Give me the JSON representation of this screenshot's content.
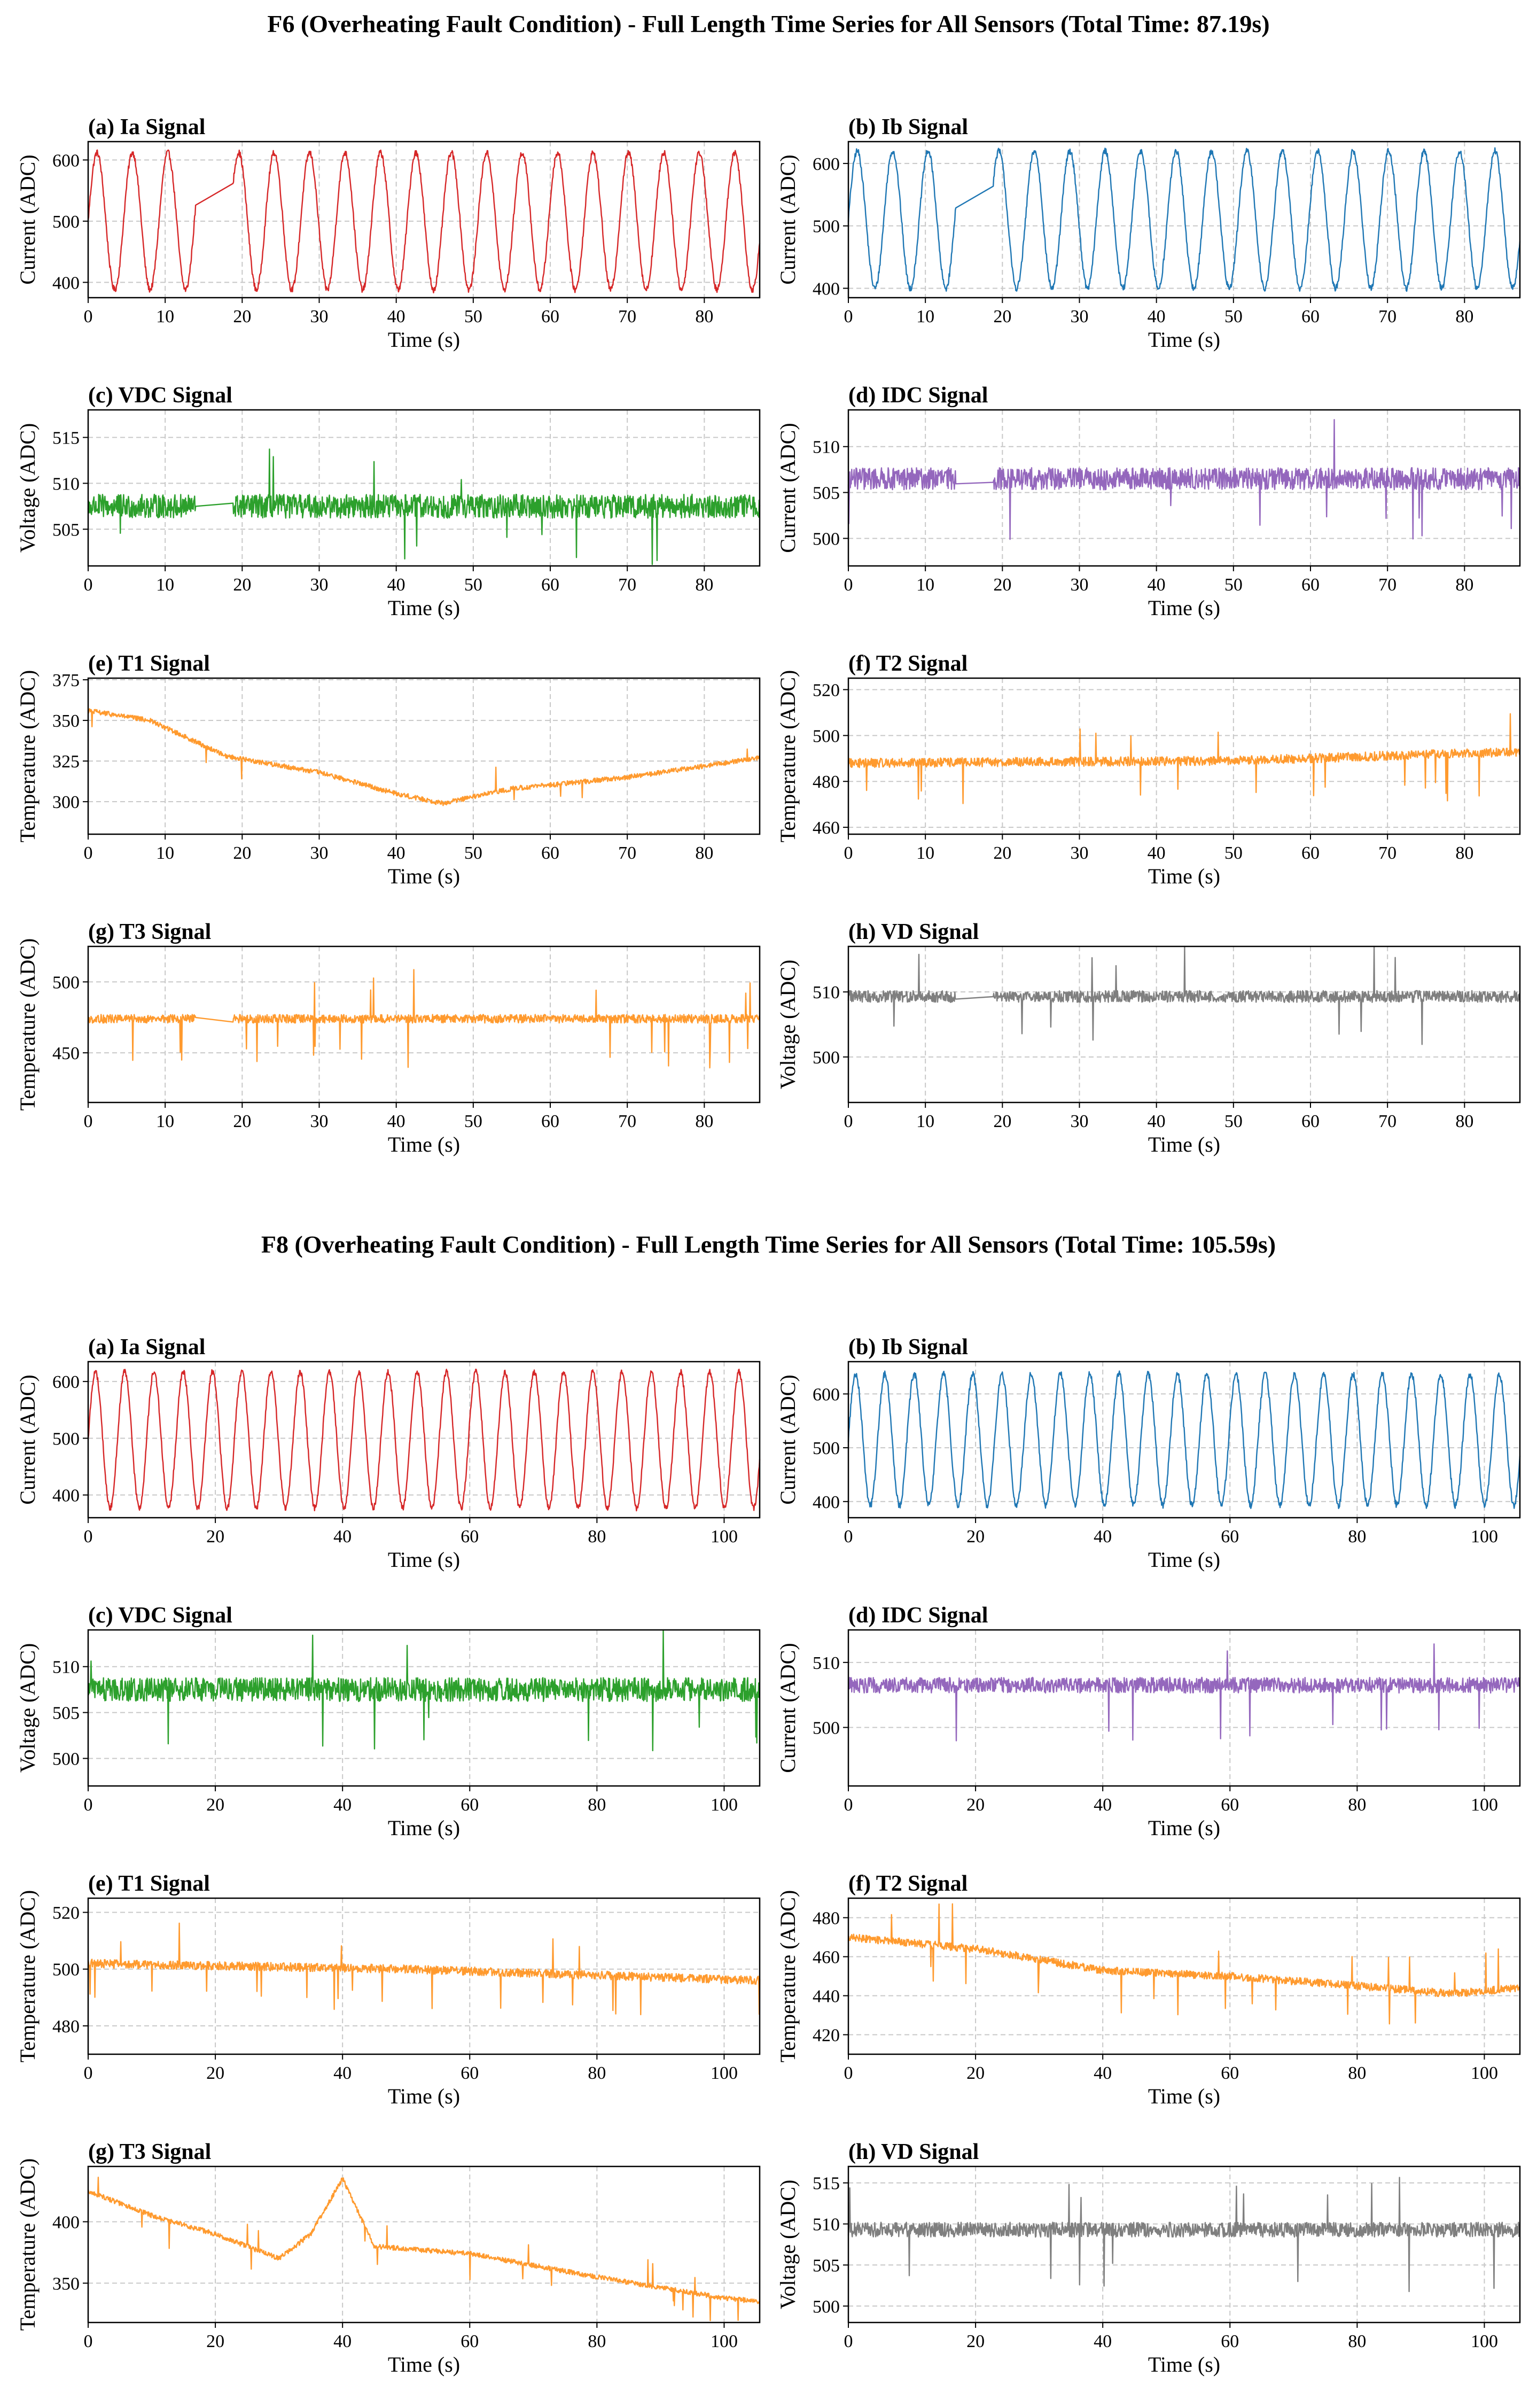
{
  "colors": {
    "ia": "#d62728",
    "ib": "#1f77b4",
    "vdc": "#2ca02c",
    "idc": "#9467bd",
    "temp": "#ff9a2e",
    "vd": "#7f7f7f",
    "grid": "#c8c8c8",
    "axis": "#000000"
  },
  "figures": [
    {
      "title": "F6 (Overheating Fault Condition) - Full Length Time Series for All Sensors (Total Time: 87.19s)",
      "total_time": 87.19
    },
    {
      "title": "F8 (Overheating Fault Condition) - Full Length Time Series for All Sensors (Total Time: 105.59s)",
      "total_time": 105.59
    }
  ],
  "chart_data": [
    {
      "figure": 0,
      "panel": "a",
      "type": "line",
      "title": "(a) Ia Signal",
      "xlabel": "Time (s)",
      "ylabel": "Current (ADC)",
      "color_key": "ia",
      "xlim": [
        0,
        87.19
      ],
      "xticks": [
        0,
        10,
        20,
        30,
        40,
        50,
        60,
        70,
        80
      ],
      "ylim": [
        375,
        630
      ],
      "yticks": [
        400,
        500,
        600
      ],
      "signal": {
        "kind": "sine",
        "base": 500,
        "amp": 112,
        "period": 4.6,
        "noise": 5,
        "spikes": 0,
        "spike_amp": 0,
        "gap": [
          14,
          18.8
        ]
      }
    },
    {
      "figure": 0,
      "panel": "b",
      "type": "line",
      "title": "(b) Ib Signal",
      "xlabel": "Time (s)",
      "ylabel": "Current (ADC)",
      "color_key": "ib",
      "xlim": [
        0,
        87.19
      ],
      "xticks": [
        0,
        10,
        20,
        30,
        40,
        50,
        60,
        70,
        80
      ],
      "ylim": [
        385,
        635
      ],
      "yticks": [
        400,
        500,
        600
      ],
      "signal": {
        "kind": "sine",
        "base": 510,
        "amp": 110,
        "period": 4.6,
        "noise": 5,
        "spikes": 0,
        "spike_amp": 0,
        "gap": [
          14,
          18.8
        ]
      }
    },
    {
      "figure": 0,
      "panel": "c",
      "type": "line",
      "title": "(c) VDC Signal",
      "xlabel": "Time (s)",
      "ylabel": "Voltage (ADC)",
      "color_key": "vdc",
      "xlim": [
        0,
        87.19
      ],
      "xticks": [
        0,
        10,
        20,
        30,
        40,
        50,
        60,
        70,
        80
      ],
      "ylim": [
        501,
        518
      ],
      "yticks": [
        505,
        510,
        515
      ],
      "signal": {
        "kind": "flat",
        "base": 507.5,
        "noise": 1.3,
        "spikes": 12,
        "spike_amp": 6,
        "gap": [
          14,
          18.8
        ]
      }
    },
    {
      "figure": 0,
      "panel": "d",
      "type": "line",
      "title": "(d) IDC Signal",
      "xlabel": "Time (s)",
      "ylabel": "Current (ADC)",
      "color_key": "idc",
      "xlim": [
        0,
        87.19
      ],
      "xticks": [
        0,
        10,
        20,
        30,
        40,
        50,
        60,
        70,
        80
      ],
      "ylim": [
        497,
        514
      ],
      "yticks": [
        500,
        505,
        510
      ],
      "signal": {
        "kind": "flat",
        "base": 506.5,
        "noise": 1.2,
        "spikes": 12,
        "spike_amp": 6,
        "gap": [
          14,
          18.8
        ]
      }
    },
    {
      "figure": 0,
      "panel": "e",
      "type": "line",
      "title": "(e) T1 Signal",
      "xlabel": "Time (s)",
      "ylabel": "Temperature (ADC)",
      "color_key": "temp",
      "xlim": [
        0,
        87.19
      ],
      "xticks": [
        0,
        10,
        20,
        30,
        40,
        50,
        60,
        70,
        80
      ],
      "ylim": [
        280,
        376
      ],
      "yticks": [
        300,
        325,
        350,
        375
      ],
      "signal": {
        "kind": "trend",
        "points": [
          [
            0,
            356
          ],
          [
            8,
            350
          ],
          [
            18,
            328
          ],
          [
            30,
            318
          ],
          [
            40,
            305
          ],
          [
            46,
            299
          ],
          [
            55,
            308
          ],
          [
            70,
            315
          ],
          [
            87.19,
            327
          ]
        ],
        "noise": 1.5,
        "spikes": 8,
        "spike_amp": 15,
        "gap": null
      }
    },
    {
      "figure": 0,
      "panel": "f",
      "type": "line",
      "title": "(f) T2 Signal",
      "xlabel": "Time (s)",
      "ylabel": "Temperature (ADC)",
      "color_key": "temp",
      "xlim": [
        0,
        87.19
      ],
      "xticks": [
        0,
        10,
        20,
        30,
        40,
        50,
        60,
        70,
        80
      ],
      "ylim": [
        457,
        525
      ],
      "yticks": [
        460,
        480,
        500,
        520
      ],
      "signal": {
        "kind": "trend",
        "points": [
          [
            0,
            488
          ],
          [
            50,
            489
          ],
          [
            87.19,
            493
          ]
        ],
        "noise": 2,
        "spikes": 20,
        "spike_amp": 20,
        "gap": null
      }
    },
    {
      "figure": 0,
      "panel": "g",
      "type": "line",
      "title": "(g) T3 Signal",
      "xlabel": "Time (s)",
      "ylabel": "Temperature (ADC)",
      "color_key": "temp",
      "xlim": [
        0,
        87.19
      ],
      "xticks": [
        0,
        10,
        20,
        30,
        40,
        50,
        60,
        70,
        80
      ],
      "ylim": [
        415,
        525
      ],
      "yticks": [
        450,
        500
      ],
      "signal": {
        "kind": "trend",
        "points": [
          [
            0,
            474
          ],
          [
            87.19,
            474
          ]
        ],
        "noise": 3,
        "spikes": 26,
        "spike_amp": 35,
        "gap": [
          14,
          18.8
        ]
      }
    },
    {
      "figure": 0,
      "panel": "h",
      "type": "line",
      "title": "(h) VD Signal",
      "xlabel": "Time (s)",
      "ylabel": "Voltage (ADC)",
      "color_key": "vd",
      "xlim": [
        0,
        87.19
      ],
      "xticks": [
        0,
        10,
        20,
        30,
        40,
        50,
        60,
        70,
        80
      ],
      "ylim": [
        493,
        517
      ],
      "yticks": [
        500,
        510
      ],
      "signal": {
        "kind": "flat",
        "base": 509.3,
        "noise": 0.9,
        "spikes": 14,
        "spike_amp": 9,
        "gap": [
          14,
          18.8
        ]
      }
    },
    {
      "figure": 1,
      "panel": "a",
      "type": "line",
      "title": "(a) Ia Signal",
      "xlabel": "Time (s)",
      "ylabel": "Current (ADC)",
      "color_key": "ia",
      "xlim": [
        0,
        105.59
      ],
      "xticks": [
        0,
        20,
        40,
        60,
        80,
        100
      ],
      "ylim": [
        360,
        635
      ],
      "yticks": [
        400,
        500,
        600
      ],
      "signal": {
        "kind": "sine",
        "base": 497,
        "amp": 120,
        "period": 4.6,
        "noise": 5,
        "spikes": 0,
        "spike_amp": 0,
        "gap": null
      }
    },
    {
      "figure": 1,
      "panel": "b",
      "type": "line",
      "title": "(b) Ib Signal",
      "xlabel": "Time (s)",
      "ylabel": "Current (ADC)",
      "color_key": "ib",
      "xlim": [
        0,
        105.59
      ],
      "xticks": [
        0,
        20,
        40,
        60,
        80,
        100
      ],
      "ylim": [
        370,
        660
      ],
      "yticks": [
        400,
        500,
        600
      ],
      "signal": {
        "kind": "sine",
        "base": 515,
        "amp": 122,
        "period": 4.6,
        "noise": 6,
        "spikes": 0,
        "spike_amp": 0,
        "gap": null
      }
    },
    {
      "figure": 1,
      "panel": "c",
      "type": "line",
      "title": "(c) VDC Signal",
      "xlabel": "Time (s)",
      "ylabel": "Voltage (ADC)",
      "color_key": "vdc",
      "xlim": [
        0,
        105.59
      ],
      "xticks": [
        0,
        20,
        40,
        60,
        80,
        100
      ],
      "ylim": [
        497,
        514
      ],
      "yticks": [
        500,
        505,
        510
      ],
      "signal": {
        "kind": "flat",
        "base": 507.5,
        "noise": 1.3,
        "spikes": 14,
        "spike_amp": 7,
        "gap": null
      }
    },
    {
      "figure": 1,
      "panel": "d",
      "type": "line",
      "title": "(d) IDC Signal",
      "xlabel": "Time (s)",
      "ylabel": "Current (ADC)",
      "color_key": "idc",
      "xlim": [
        0,
        105.59
      ],
      "xticks": [
        0,
        20,
        40,
        60,
        80,
        100
      ],
      "ylim": [
        491,
        515
      ],
      "yticks": [
        500,
        510
      ],
      "signal": {
        "kind": "flat",
        "base": 506.5,
        "noise": 1.2,
        "spikes": 12,
        "spike_amp": 10,
        "gap": null
      }
    },
    {
      "figure": 1,
      "panel": "e",
      "type": "line",
      "title": "(e) T1 Signal",
      "xlabel": "Time (s)",
      "ylabel": "Temperature (ADC)",
      "color_key": "temp",
      "xlim": [
        0,
        105.59
      ],
      "xticks": [
        0,
        20,
        40,
        60,
        80,
        100
      ],
      "ylim": [
        470,
        525
      ],
      "yticks": [
        480,
        500,
        520
      ],
      "signal": {
        "kind": "trend",
        "points": [
          [
            0,
            502
          ],
          [
            50,
            500
          ],
          [
            105.59,
            496
          ]
        ],
        "noise": 1.5,
        "spikes": 24,
        "spike_amp": 15,
        "gap": null
      }
    },
    {
      "figure": 1,
      "panel": "f",
      "type": "line",
      "title": "(f) T2 Signal",
      "xlabel": "Time (s)",
      "ylabel": "Temperature (ADC)",
      "color_key": "temp",
      "xlim": [
        0,
        105.59
      ],
      "xticks": [
        0,
        20,
        40,
        60,
        80,
        100
      ],
      "ylim": [
        410,
        490
      ],
      "yticks": [
        420,
        440,
        460,
        480
      ],
      "signal": {
        "kind": "trend",
        "points": [
          [
            0,
            470
          ],
          [
            20,
            464
          ],
          [
            40,
            453
          ],
          [
            60,
            450
          ],
          [
            80,
            445
          ],
          [
            95,
            441
          ],
          [
            105.59,
            444
          ]
        ],
        "noise": 2,
        "spikes": 24,
        "spike_amp": 22,
        "gap": null
      }
    },
    {
      "figure": 1,
      "panel": "g",
      "type": "line",
      "title": "(g) T3 Signal",
      "xlabel": "Time (s)",
      "ylabel": "Temperature (ADC)",
      "color_key": "temp",
      "xlim": [
        0,
        105.59
      ],
      "xticks": [
        0,
        20,
        40,
        60,
        80,
        100
      ],
      "ylim": [
        318,
        445
      ],
      "yticks": [
        350,
        400
      ],
      "signal": {
        "kind": "trend",
        "points": [
          [
            0,
            425
          ],
          [
            10,
            405
          ],
          [
            20,
            390
          ],
          [
            30,
            370
          ],
          [
            35,
            390
          ],
          [
            40,
            435
          ],
          [
            45,
            380
          ],
          [
            60,
            374
          ],
          [
            80,
            355
          ],
          [
            100,
            338
          ],
          [
            105.59,
            335
          ]
        ],
        "noise": 2,
        "spikes": 22,
        "spike_amp": 22,
        "gap": null
      }
    },
    {
      "figure": 1,
      "panel": "h",
      "type": "line",
      "title": "(h) VD Signal",
      "xlabel": "Time (s)",
      "ylabel": "Voltage (ADC)",
      "color_key": "vd",
      "xlim": [
        0,
        105.59
      ],
      "xticks": [
        0,
        20,
        40,
        60,
        80,
        100
      ],
      "ylim": [
        498,
        517
      ],
      "yticks": [
        500,
        505,
        510,
        515
      ],
      "signal": {
        "kind": "flat",
        "base": 509.3,
        "noise": 0.9,
        "spikes": 16,
        "spike_amp": 7,
        "gap": null
      }
    }
  ]
}
